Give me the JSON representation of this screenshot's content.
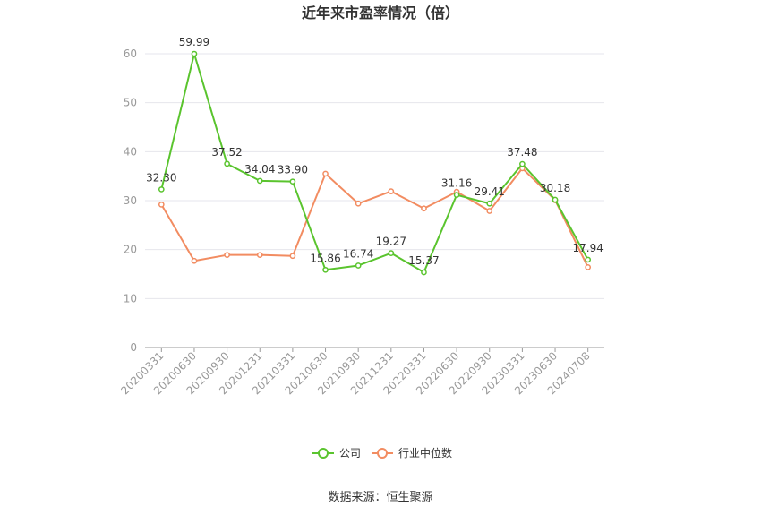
{
  "chart_data": {
    "type": "line",
    "title": "近年来市盈率情况（倍）",
    "categories": [
      "20200331",
      "20200630",
      "20200930",
      "20201231",
      "20210331",
      "20210630",
      "20210930",
      "20211231",
      "20220331",
      "20220630",
      "20220930",
      "20230331",
      "20230630",
      "20240708"
    ],
    "ylim": [
      0,
      60
    ],
    "yticks": [
      0,
      10,
      20,
      30,
      40,
      50,
      60
    ],
    "grid": true,
    "legend_position": "bottom",
    "series": [
      {
        "name": "公司",
        "color": "#5ac42e",
        "values": [
          32.3,
          59.99,
          37.52,
          34.04,
          33.9,
          15.86,
          16.74,
          19.27,
          15.37,
          31.16,
          29.41,
          37.48,
          30.18,
          17.94
        ],
        "labels": [
          "32.30",
          "59.99",
          "37.52",
          "34.04",
          "33.90",
          "15.86",
          "16.74",
          "19.27",
          "15.37",
          "31.16",
          "29.41",
          "37.48",
          "30.18",
          "17.94"
        ]
      },
      {
        "name": "行业中位数",
        "color": "#f28c61",
        "values": [
          29.2,
          17.7,
          18.9,
          18.9,
          18.7,
          35.5,
          29.4,
          31.9,
          28.4,
          31.8,
          27.9,
          36.6,
          30.1,
          16.4
        ]
      }
    ]
  },
  "footer": {
    "source": "数据来源：恒生聚源"
  }
}
